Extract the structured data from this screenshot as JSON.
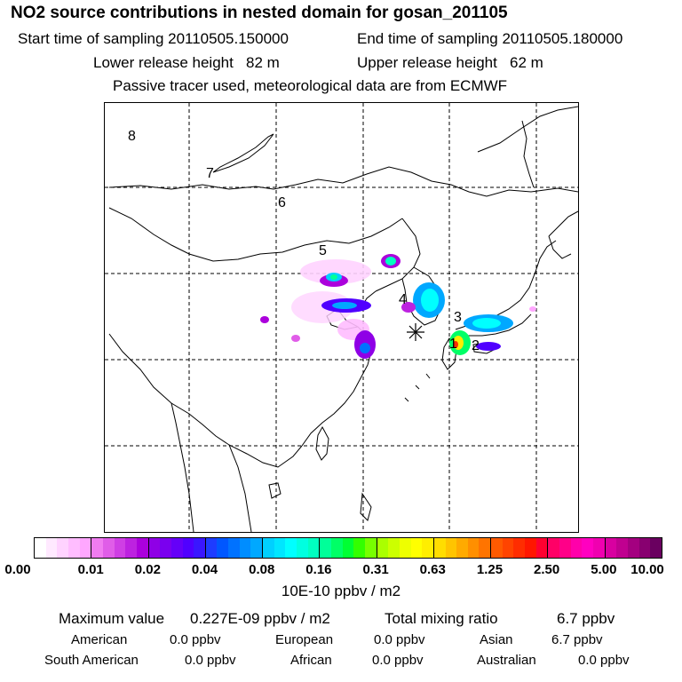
{
  "header": {
    "title": "NO2 source contributions in nested domain for gosan_201105",
    "start_time": "Start time of sampling 20110505.150000",
    "end_time": "End time of sampling 20110505.180000",
    "lower_height": "Lower release height   82 m",
    "upper_height": "Upper release height   62 m",
    "note": "Passive tracer used, meteorological data are from ECMWF"
  },
  "map": {
    "day_labels": [
      "8",
      "7",
      "6",
      "5",
      "4",
      "3",
      "2",
      "1"
    ],
    "receptor_symbol": "asterisk",
    "grid": "dashed"
  },
  "colorbar": {
    "ticks": [
      "0.00",
      "0.01",
      "0.02",
      "0.04",
      "0.08",
      "0.16",
      "0.31",
      "0.63",
      "1.25",
      "2.50",
      "5.00",
      "10.00"
    ],
    "units": "10E-10 ppbv / m2",
    "colors": [
      [
        "#ffffff",
        "#ffe9ff",
        "#ffd3ff",
        "#ffbdff",
        "#ffa7ff"
      ],
      [
        "#f07cf0",
        "#e05de8",
        "#cf3fe4",
        "#bd22e0",
        "#ab00dc"
      ],
      [
        "#8f00e6",
        "#7a00ef",
        "#6500f8",
        "#5000ff",
        "#3a16ff"
      ],
      [
        "#1e3cff",
        "#0057ff",
        "#0072ff",
        "#008dff",
        "#00a8ff"
      ],
      [
        "#00d0ff",
        "#00e6ff",
        "#00ffff",
        "#00ffe0",
        "#00ffc0"
      ],
      [
        "#00ff99",
        "#00ff66",
        "#00ff33",
        "#33ff00",
        "#77ff00"
      ],
      [
        "#aaff00",
        "#ccff00",
        "#eeff00",
        "#ffff00",
        "#ffee00"
      ],
      [
        "#ffdd00",
        "#ffc400",
        "#ffaa00",
        "#ff8f00",
        "#ff7400"
      ],
      [
        "#ff5a00",
        "#ff4400",
        "#ff2d00",
        "#ff1600",
        "#ff0030"
      ],
      [
        "#ff0066",
        "#ff0088",
        "#ff00aa",
        "#ff00c0",
        "#f000b0"
      ],
      [
        "#d800a0",
        "#c00090",
        "#a40080",
        "#880070",
        "#6a0060"
      ]
    ]
  },
  "stats": {
    "max_label": "Maximum value",
    "max_value": "0.227E-09 ppbv / m2",
    "total_label": "Total mixing ratio",
    "total_value": "6.7 ppbv",
    "regions": [
      {
        "name": "American",
        "value": "0.0 ppbv"
      },
      {
        "name": "European",
        "value": "0.0 ppbv"
      },
      {
        "name": "Asian",
        "value": "6.7 ppbv"
      },
      {
        "name": "South American",
        "value": "0.0 ppbv"
      },
      {
        "name": "African",
        "value": "0.0 ppbv"
      },
      {
        "name": "Australian",
        "value": "0.0 ppbv"
      }
    ]
  }
}
